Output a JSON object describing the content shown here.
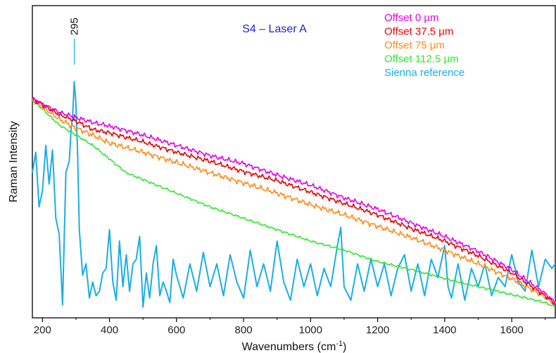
{
  "chart_data": {
    "type": "line",
    "title": "S4 – Laser A",
    "title_color": "#1f1fd0",
    "xlabel": "Wavenumbers (cm",
    "xlabel_sup": "-1",
    "xlabel_close": ")",
    "ylabel": "Raman Intensity",
    "xlim": [
      170,
      1730
    ],
    "ylim": [
      0,
      1
    ],
    "xticks": [
      200,
      400,
      600,
      800,
      1000,
      1200,
      1400,
      1600
    ],
    "xtick_labels": [
      "200",
      "400",
      "600",
      "800",
      "1000",
      "1200",
      "1400",
      "1600"
    ],
    "y_ticks_shown": false,
    "grid": false,
    "legend_position": "top-right",
    "annotation": {
      "text": "295",
      "x": 295,
      "y": 1.0
    },
    "series": [
      {
        "name": "Offset 0 µm",
        "color": "#e600e6",
        "x": [
          170,
          250,
          295,
          350,
          400,
          500,
          600,
          700,
          800,
          900,
          1000,
          1100,
          1200,
          1300,
          1400,
          1500,
          1600,
          1700,
          1730
        ],
        "y": [
          0.925,
          0.865,
          0.845,
          0.82,
          0.805,
          0.765,
          0.72,
          0.675,
          0.64,
          0.59,
          0.545,
          0.49,
          0.44,
          0.38,
          0.32,
          0.255,
          0.175,
          0.07,
          0.03
        ]
      },
      {
        "name": "Offset 37.5 µm",
        "color": "#e60000",
        "x": [
          170,
          250,
          295,
          350,
          400,
          500,
          600,
          700,
          800,
          900,
          1000,
          1100,
          1200,
          1300,
          1400,
          1500,
          1600,
          1700,
          1730
        ],
        "y": [
          0.925,
          0.855,
          0.83,
          0.79,
          0.775,
          0.735,
          0.69,
          0.65,
          0.605,
          0.565,
          0.515,
          0.465,
          0.415,
          0.355,
          0.3,
          0.235,
          0.16,
          0.06,
          0.025
        ]
      },
      {
        "name": "Offset 75 µm",
        "color": "#ff8c1a",
        "x": [
          170,
          250,
          295,
          350,
          400,
          500,
          600,
          700,
          800,
          900,
          1000,
          1100,
          1200,
          1300,
          1400,
          1500,
          1600,
          1700,
          1730
        ],
        "y": [
          0.92,
          0.835,
          0.8,
          0.765,
          0.73,
          0.69,
          0.645,
          0.6,
          0.555,
          0.51,
          0.46,
          0.415,
          0.365,
          0.315,
          0.26,
          0.2,
          0.135,
          0.055,
          0.02
        ]
      },
      {
        "name": "Offset 112.5 µm",
        "color": "#33e633",
        "x": [
          170,
          250,
          300,
          350,
          400,
          450,
          500,
          600,
          700,
          800,
          900,
          1000,
          1100,
          1200,
          1300,
          1400,
          1500,
          1600,
          1700,
          1730
        ],
        "y": [
          0.92,
          0.81,
          0.765,
          0.72,
          0.66,
          0.6,
          0.57,
          0.51,
          0.45,
          0.4,
          0.35,
          0.3,
          0.26,
          0.21,
          0.175,
          0.135,
          0.1,
          0.065,
          0.03,
          0.01
        ]
      },
      {
        "name": "Sienna reference",
        "color": "#1aaee6",
        "x": [
          170,
          180,
          190,
          200,
          210,
          220,
          230,
          240,
          250,
          260,
          270,
          280,
          285,
          290,
          295,
          300,
          305,
          310,
          320,
          330,
          340,
          350,
          360,
          370,
          380,
          390,
          400,
          410,
          420,
          430,
          440,
          450,
          460,
          470,
          480,
          490,
          500,
          510,
          520,
          530,
          540,
          550,
          560,
          570,
          580,
          590,
          600,
          620,
          640,
          660,
          680,
          700,
          720,
          740,
          760,
          780,
          800,
          820,
          840,
          860,
          880,
          900,
          920,
          940,
          960,
          980,
          1000,
          1020,
          1040,
          1060,
          1080,
          1090,
          1100,
          1120,
          1140,
          1160,
          1180,
          1200,
          1220,
          1240,
          1260,
          1280,
          1300,
          1320,
          1340,
          1360,
          1380,
          1400,
          1410,
          1420,
          1440,
          1460,
          1480,
          1500,
          1520,
          1540,
          1560,
          1580,
          1600,
          1620,
          1640,
          1660,
          1680,
          1700,
          1720,
          1730
        ],
        "y": [
          0.6,
          0.69,
          0.45,
          0.52,
          0.72,
          0.55,
          0.7,
          0.4,
          0.33,
          0.02,
          0.6,
          0.65,
          0.78,
          0.85,
          1.0,
          0.9,
          0.68,
          0.35,
          0.15,
          0.2,
          0.05,
          0.12,
          0.06,
          0.08,
          0.16,
          0.18,
          0.35,
          0.12,
          0.04,
          0.3,
          0.1,
          0.24,
          0.08,
          0.2,
          0.22,
          0.32,
          0.01,
          0.16,
          0.05,
          0.2,
          0.28,
          0.06,
          0.12,
          0.08,
          0.03,
          0.22,
          0.15,
          0.05,
          0.2,
          0.08,
          0.25,
          0.1,
          0.2,
          0.06,
          0.24,
          0.12,
          0.05,
          0.26,
          0.1,
          0.2,
          0.08,
          0.3,
          0.12,
          0.04,
          0.22,
          0.1,
          0.2,
          0.06,
          0.18,
          0.1,
          0.28,
          0.36,
          0.1,
          0.04,
          0.2,
          0.08,
          0.22,
          0.1,
          0.2,
          0.06,
          0.18,
          0.24,
          0.08,
          0.2,
          0.06,
          0.22,
          0.14,
          0.28,
          0.1,
          0.05,
          0.2,
          0.04,
          0.18,
          0.1,
          0.2,
          0.06,
          0.14,
          0.1,
          0.24,
          0.12,
          0.08,
          0.26,
          0.1,
          0.22,
          0.18,
          0.2
        ]
      }
    ]
  }
}
